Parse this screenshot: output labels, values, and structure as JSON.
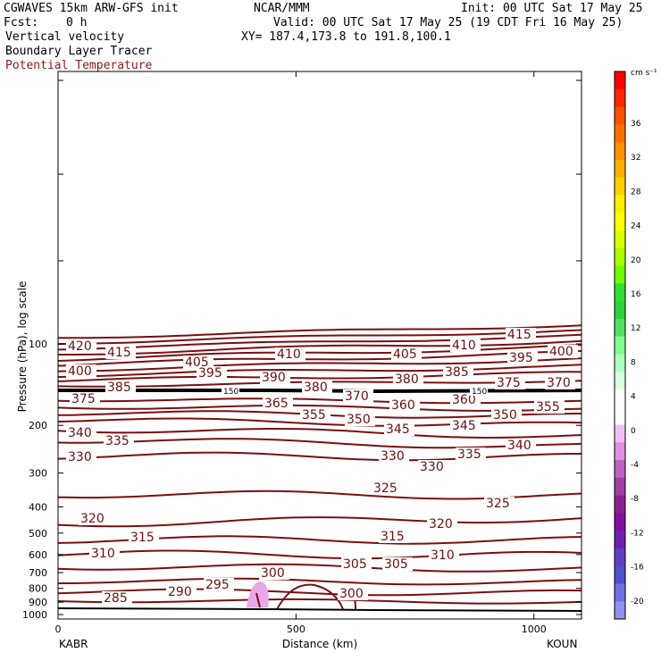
{
  "header": {
    "model": "CGWAVES 15km ARW-GFS init",
    "org": "NCAR/MMM",
    "init": "Init: 00 UTC Sat 17 May 25",
    "fcst_label": "Fcst:",
    "fcst_value": "0 h",
    "valid": "Valid: 00 UTC Sat 17 May 25 (19 CDT Fri 16 May 25)",
    "field1": "Vertical velocity",
    "field2": "Boundary Layer Tracer",
    "field3": "Potential Temperature",
    "xy": "XY= 187.4,173.8 to 191.8,100.1"
  },
  "colors": {
    "theta_contour": "#7a0f0f",
    "w_negative_small": "#e8a8e8",
    "tropopause": "#000000"
  },
  "chart_data": {
    "type": "contour cross-section",
    "xlabel": "Distance (km)",
    "ylabel": "Pressure (hPa), log scale",
    "x_ticks": [
      "0",
      "500",
      "1000"
    ],
    "x_range": [
      0,
      1100
    ],
    "y_ticks": [
      "100",
      "200",
      "300",
      "400",
      "500",
      "600",
      "700",
      "800",
      "900",
      "1000"
    ],
    "y_scale": "log",
    "left_station": "KABR",
    "right_station": "KOUN",
    "theta_labels": [
      "420",
      "415",
      "410",
      "405",
      "400",
      "395",
      "390",
      "385",
      "380",
      "375",
      "370",
      "365",
      "360",
      "355",
      "350",
      "345",
      "340",
      "335",
      "330",
      "325",
      "320",
      "315",
      "310",
      "305",
      "300",
      "295",
      "290",
      "285"
    ],
    "tropopause_marks": [
      "150",
      "150"
    ],
    "colorbar": {
      "units": "cm s⁻¹",
      "ticks": [
        "36",
        "32",
        "28",
        "24",
        "20",
        "16",
        "12",
        "8",
        "4",
        "0",
        "-4",
        "-8",
        "-12",
        "-16",
        "-20"
      ],
      "colors": [
        "#ff0000",
        "#ff2a00",
        "#ff5000",
        "#ff7000",
        "#ff9000",
        "#ffb000",
        "#ffd000",
        "#ffee00",
        "#ffff00",
        "#d8ff00",
        "#a8ff00",
        "#70ff00",
        "#30e030",
        "#30d040",
        "#50e060",
        "#80ff90",
        "#b0ffc0",
        "#d8ffe0",
        "#ffffff",
        "#ffffff",
        "#f0c0f0",
        "#e090e0",
        "#c060c0",
        "#a040a0",
        "#902090",
        "#8010a0",
        "#7020b0",
        "#6040c0",
        "#5050d0",
        "#7070e0",
        "#9090f0"
      ]
    }
  }
}
